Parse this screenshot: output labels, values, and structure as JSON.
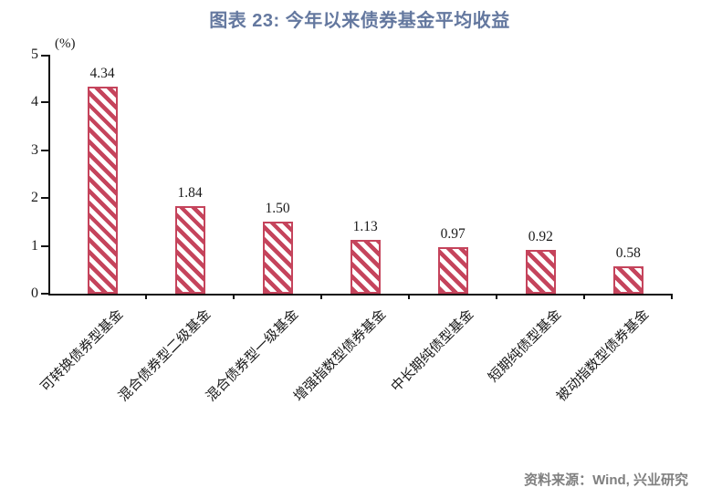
{
  "chart_data": {
    "type": "bar",
    "title": "图表 23: 今年以来债券基金平均收益",
    "unit": "(%)",
    "categories": [
      "可转换债券型基金",
      "混合债券型二级基金",
      "混合债券型一级基金",
      "增强指数型债券基金",
      "中长期纯债型基金",
      "短期纯债型基金",
      "被动指数型债券基金"
    ],
    "values": [
      4.34,
      1.84,
      1.5,
      1.13,
      0.97,
      0.92,
      0.58
    ],
    "value_labels": [
      "4.34",
      "1.84",
      "1.50",
      "1.13",
      "0.97",
      "0.92",
      "0.58"
    ],
    "ylim": [
      0,
      5
    ],
    "yticks": [
      0,
      1,
      2,
      3,
      4,
      5
    ],
    "grid": false,
    "legend": "none",
    "bar_color": "#c5445c",
    "hatch": "diagonal-stripes",
    "title_color": "#64789f",
    "source": "资料来源：Wind, 兴业研究"
  }
}
